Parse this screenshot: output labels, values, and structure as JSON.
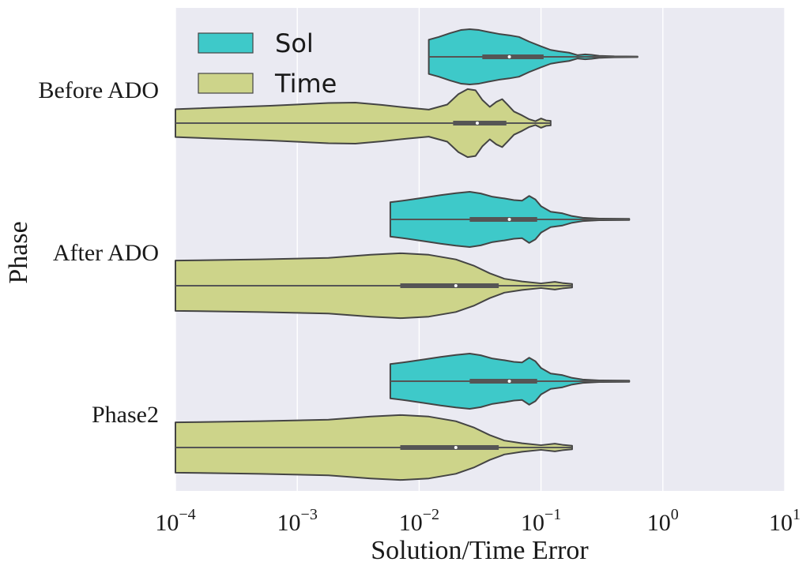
{
  "chart_data": {
    "type": "violin",
    "orientation": "horizontal",
    "xlabel": "Solution/Time Error",
    "ylabel": "Phase",
    "xscale": "log",
    "xlim": [
      0.0001,
      10
    ],
    "x_ticks": [
      {
        "base": "10",
        "exp": "−4",
        "value": 0.0001
      },
      {
        "base": "10",
        "exp": "−3",
        "value": 0.001
      },
      {
        "base": "10",
        "exp": "−2",
        "value": 0.01
      },
      {
        "base": "10",
        "exp": "−1",
        "value": 0.1
      },
      {
        "base": "10",
        "exp": "0",
        "value": 1
      },
      {
        "base": "10",
        "exp": "1",
        "value": 10
      }
    ],
    "categories": [
      "Before ADO",
      "After ADO",
      "Phase2"
    ],
    "grid": true,
    "legend_position": "top-left",
    "series": [
      {
        "name": "Sol",
        "color": "#3ec9c9",
        "stats": [
          {
            "category": "Before ADO",
            "min": 0.012,
            "q1": 0.033,
            "median": 0.055,
            "q3": 0.105,
            "max": 0.62
          },
          {
            "category": "After ADO",
            "min": 0.0058,
            "q1": 0.026,
            "median": 0.055,
            "q3": 0.093,
            "max": 0.53
          },
          {
            "category": "Phase2",
            "min": 0.0058,
            "q1": 0.026,
            "median": 0.055,
            "q3": 0.093,
            "max": 0.53
          }
        ],
        "profiles": [
          {
            "category": "Before ADO",
            "width": [
              [
                0.012,
                0.62
              ],
              [
                0.0145,
                0.72
              ],
              [
                0.018,
                0.86
              ],
              [
                0.022,
                0.97
              ],
              [
                0.026,
                1.0
              ],
              [
                0.031,
                0.97
              ],
              [
                0.037,
                0.9
              ],
              [
                0.045,
                0.83
              ],
              [
                0.055,
                0.78
              ],
              [
                0.066,
                0.72
              ],
              [
                0.08,
                0.55
              ],
              [
                0.1,
                0.38
              ],
              [
                0.12,
                0.25
              ],
              [
                0.14,
                0.2
              ],
              [
                0.17,
                0.15
              ],
              [
                0.2,
                0.06
              ],
              [
                0.23,
                0.09
              ],
              [
                0.26,
                0.07
              ],
              [
                0.3,
                0.035
              ],
              [
                0.4,
                0.018
              ],
              [
                0.62,
                0.012
              ]
            ]
          },
          {
            "category": "After ADO",
            "width": [
              [
                0.0058,
                0.62
              ],
              [
                0.008,
                0.7
              ],
              [
                0.011,
                0.79
              ],
              [
                0.015,
                0.88
              ],
              [
                0.02,
                0.95
              ],
              [
                0.026,
                1.0
              ],
              [
                0.032,
                0.94
              ],
              [
                0.04,
                0.82
              ],
              [
                0.05,
                0.76
              ],
              [
                0.06,
                0.7
              ],
              [
                0.07,
                0.68
              ],
              [
                0.08,
                0.85
              ],
              [
                0.09,
                0.72
              ],
              [
                0.1,
                0.48
              ],
              [
                0.12,
                0.28
              ],
              [
                0.15,
                0.22
              ],
              [
                0.18,
                0.12
              ],
              [
                0.22,
                0.06
              ],
              [
                0.3,
                0.03
              ],
              [
                0.53,
                0.02
              ]
            ]
          },
          {
            "category": "Phase2",
            "width": [
              [
                0.0058,
                0.62
              ],
              [
                0.008,
                0.7
              ],
              [
                0.011,
                0.79
              ],
              [
                0.015,
                0.88
              ],
              [
                0.02,
                0.95
              ],
              [
                0.026,
                1.0
              ],
              [
                0.032,
                0.94
              ],
              [
                0.04,
                0.82
              ],
              [
                0.05,
                0.76
              ],
              [
                0.06,
                0.7
              ],
              [
                0.07,
                0.68
              ],
              [
                0.08,
                0.85
              ],
              [
                0.09,
                0.72
              ],
              [
                0.1,
                0.48
              ],
              [
                0.12,
                0.28
              ],
              [
                0.15,
                0.22
              ],
              [
                0.18,
                0.12
              ],
              [
                0.22,
                0.06
              ],
              [
                0.3,
                0.03
              ],
              [
                0.53,
                0.02
              ]
            ]
          }
        ]
      },
      {
        "name": "Time",
        "color": "#cdd48a",
        "stats": [
          {
            "category": "Before ADO",
            "min": 0.0001,
            "q1": 0.019,
            "median": 0.03,
            "q3": 0.052,
            "max": 0.12
          },
          {
            "category": "After ADO",
            "min": 0.0001,
            "q1": 0.007,
            "median": 0.02,
            "q3": 0.045,
            "max": 0.18
          },
          {
            "category": "Phase2",
            "min": 0.0001,
            "q1": 0.007,
            "median": 0.02,
            "q3": 0.045,
            "max": 0.18
          }
        ]
      },
      {
        "name": "Time",
        "color": "#cdd48a",
        "profiles": [
          {
            "category": "Before ADO",
            "width": [
              [
                0.0001,
                0.36
              ],
              [
                0.0006,
                0.45
              ],
              [
                0.0018,
                0.52
              ],
              [
                0.003,
                0.53
              ],
              [
                0.005,
                0.47
              ],
              [
                0.008,
                0.4
              ],
              [
                0.012,
                0.35
              ],
              [
                0.017,
                0.48
              ],
              [
                0.021,
                0.75
              ],
              [
                0.025,
                0.88
              ],
              [
                0.029,
                0.85
              ],
              [
                0.033,
                0.6
              ],
              [
                0.038,
                0.42
              ],
              [
                0.043,
                0.55
              ],
              [
                0.048,
                0.62
              ],
              [
                0.053,
                0.48
              ],
              [
                0.06,
                0.3
              ],
              [
                0.07,
                0.2
              ],
              [
                0.08,
                0.1
              ],
              [
                0.09,
                0.05
              ],
              [
                0.1,
                0.12
              ],
              [
                0.11,
                0.07
              ],
              [
                0.12,
                0.06
              ]
            ]
          },
          {
            "category": "After ADO",
            "width": [
              [
                0.0001,
                0.65
              ],
              [
                0.0005,
                0.68
              ],
              [
                0.0018,
                0.72
              ],
              [
                0.004,
                0.8
              ],
              [
                0.007,
                0.84
              ],
              [
                0.012,
                0.8
              ],
              [
                0.02,
                0.68
              ],
              [
                0.028,
                0.52
              ],
              [
                0.038,
                0.32
              ],
              [
                0.05,
                0.18
              ],
              [
                0.07,
                0.11
              ],
              [
                0.1,
                0.06
              ],
              [
                0.13,
                0.1
              ],
              [
                0.15,
                0.07
              ],
              [
                0.18,
                0.045
              ]
            ]
          },
          {
            "category": "Phase2",
            "width": [
              [
                0.0001,
                0.65
              ],
              [
                0.0005,
                0.68
              ],
              [
                0.0018,
                0.72
              ],
              [
                0.004,
                0.8
              ],
              [
                0.007,
                0.84
              ],
              [
                0.012,
                0.8
              ],
              [
                0.02,
                0.68
              ],
              [
                0.028,
                0.52
              ],
              [
                0.038,
                0.32
              ],
              [
                0.05,
                0.18
              ],
              [
                0.07,
                0.11
              ],
              [
                0.1,
                0.06
              ],
              [
                0.13,
                0.1
              ],
              [
                0.15,
                0.07
              ],
              [
                0.18,
                0.045
              ]
            ]
          }
        ]
      }
    ]
  },
  "legend": [
    {
      "name": "Sol",
      "color": "#3ec9c9"
    },
    {
      "name": "Time",
      "color": "#cdd48a"
    }
  ],
  "style": {
    "background": "#eaeaf2",
    "grid_color": "#ffffff",
    "outline_color": "#444444",
    "box_color": "#555555",
    "median_color": "#ffffff"
  }
}
